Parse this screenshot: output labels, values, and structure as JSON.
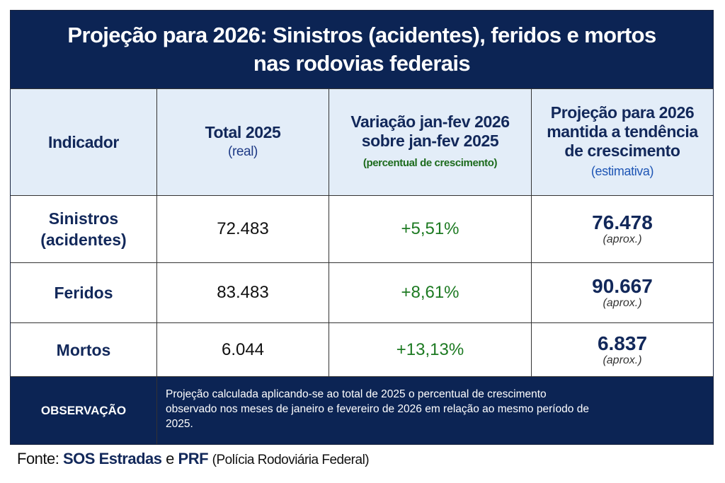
{
  "title": {
    "line1": "Projeção para 2026: Sinistros (acidentes), feridos e mortos",
    "line2": "nas rodovias federais"
  },
  "header": [
    {
      "label": "Indicador"
    },
    {
      "label": "Total 2025",
      "sub": "(real)"
    },
    {
      "label": "Variação jan-fev 2026 sobre jan-fev 2025",
      "sub": "(percentual de crescimento)"
    },
    {
      "label": "Projeção para 2026 mantida a tendência de crescimento",
      "sub": "(estimativa)"
    }
  ],
  "rows": [
    {
      "indicator": "Sinistros (acidentes)",
      "total": "72.483",
      "variation": "+5,51%",
      "projection": "76.478",
      "note": "(aprox.)"
    },
    {
      "indicator": "Feridos",
      "total": "83.483",
      "variation": "+8,61%",
      "projection": "90.667",
      "note": "(aprox.)"
    },
    {
      "indicator": "Mortos",
      "total": "6.044",
      "variation": "+13,13%",
      "projection": "6.837",
      "note": "(aprox.)"
    }
  ],
  "observation": {
    "label": "OBSERVAÇÃO",
    "text": "Projeção calculada aplicando-se ao total de 2025 o percentual de crescimento observado nos meses de janeiro e fevereiro de 2026 em relação ao mesmo período de 2025."
  },
  "source": {
    "prefix": "Fonte:",
    "source1": "SOS Estradas",
    "joiner": "e",
    "source2": "PRF",
    "detail": "(Polícia Rodoviária Federal)"
  },
  "colors": {
    "navy": "#0c2454",
    "header_bg": "#e3edf8",
    "growth_green": "#1d7a22",
    "estimate_blue": "#1f56b5"
  }
}
